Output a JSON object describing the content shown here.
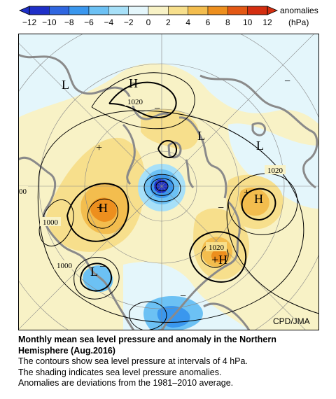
{
  "colorbar": {
    "ticks": [
      "−12",
      "−10",
      "−8",
      "−6",
      "−4",
      "−2",
      "0",
      "2",
      "4",
      "6",
      "8",
      "10",
      "12"
    ],
    "colors": [
      "#1e2fc8",
      "#2f66e0",
      "#3a97ee",
      "#6cc1f4",
      "#a7e0f8",
      "#e4f6fb",
      "#f8f2c6",
      "#f7df8c",
      "#f3bd4e",
      "#ed8f1e",
      "#e35814",
      "#d42e10"
    ],
    "label_line1": "anomalies",
    "label_line2": "(hPa)"
  },
  "map": {
    "projection": "polar stereographic, Northern Hemisphere",
    "contour_interval_hpa": 4,
    "contour_labels": [
      "1020",
      "1020",
      "1020",
      "1000",
      "1000",
      "00"
    ],
    "pressure_centers": [
      "L",
      "H",
      "L",
      "L",
      "H",
      "H",
      "+H",
      "L"
    ],
    "anomaly_signs": [
      "+",
      "+",
      "+",
      "−",
      "−",
      "−",
      "−",
      "−"
    ],
    "credit": "CPD/JMA"
  },
  "caption": {
    "title_line1": "Monthly mean sea level pressure and anomaly in the Northern",
    "title_line2": "Hemisphere (Aug.2016)",
    "line1": "The contours show sea level pressure at intervals of 4 hPa.",
    "line2": "The shading indicates sea level pressure anomalies.",
    "line3": "Anomalies are deviations from the 1981–2010 average."
  }
}
